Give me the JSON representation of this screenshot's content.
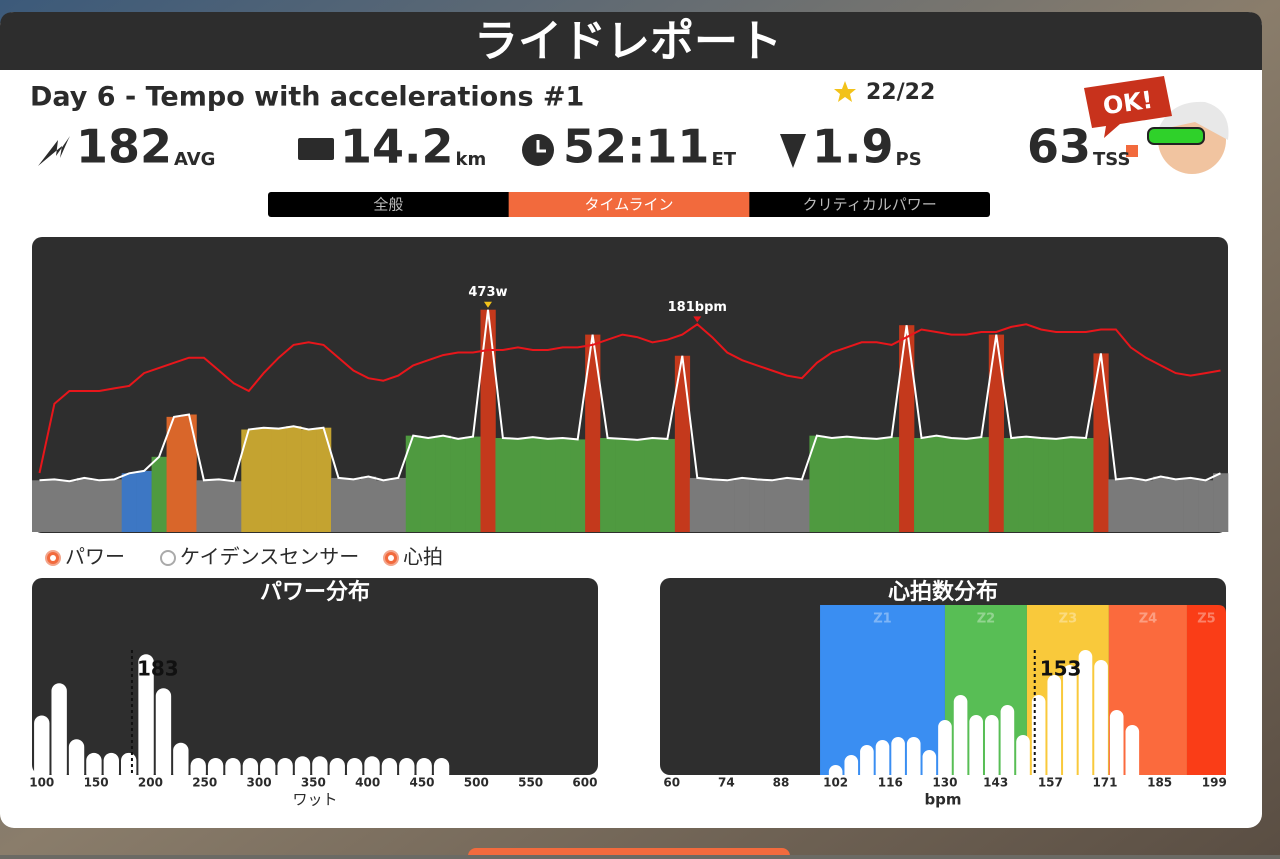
{
  "header": {
    "title": "ライドレポート"
  },
  "workout": {
    "name": "Day 6 - Tempo with accelerations #1",
    "score": "22/22"
  },
  "stats": [
    {
      "value": "182",
      "unit": "AVG"
    },
    {
      "value": "14.2",
      "unit": "km"
    },
    {
      "value": "52:11",
      "unit": "ET"
    },
    {
      "value": "1.9",
      "unit": "PS"
    },
    {
      "value": "63",
      "unit": "TSS"
    }
  ],
  "badge": "OK!",
  "tabs": {
    "items": [
      "全般",
      "タイムライン",
      "クリティカルパワー"
    ],
    "active": 1
  },
  "legend": [
    {
      "name": "パワー",
      "on": true
    },
    {
      "name": "ケイデンスセンサー",
      "on": false
    },
    {
      "name": "心拍",
      "on": true
    }
  ],
  "chart_data": [
    {
      "type": "timeline",
      "ylim": [
        0,
        600
      ],
      "y2lim": [
        100,
        210
      ],
      "annotations": [
        "473w",
        "181bpm"
      ],
      "series": [
        {
          "color": "#ffffff",
          "values": [
            110,
            112,
            108,
            115,
            110,
            112,
            125,
            130,
            160,
            245,
            250,
            110,
            112,
            108,
            218,
            222,
            220,
            225,
            218,
            222,
            115,
            112,
            118,
            110,
            115,
            205,
            200,
            205,
            198,
            203,
            473,
            200,
            198,
            202,
            198,
            200,
            197,
            420,
            200,
            198,
            196,
            200,
            198,
            375,
            115,
            112,
            110,
            115,
            112,
            110,
            115,
            112,
            205,
            200,
            203,
            200,
            198,
            202,
            440,
            200,
            205,
            200,
            198,
            202,
            420,
            200,
            203,
            200,
            198,
            202,
            200,
            380,
            112,
            115,
            110,
            118,
            112,
            115,
            110,
            125
          ],
          "zones": [
            0,
            0,
            0,
            0,
            0,
            0,
            1,
            1,
            2,
            4,
            4,
            0,
            0,
            0,
            3,
            3,
            3,
            3,
            3,
            3,
            0,
            0,
            0,
            0,
            0,
            2,
            2,
            2,
            2,
            2,
            5,
            2,
            2,
            2,
            2,
            2,
            2,
            5,
            2,
            2,
            2,
            2,
            2,
            5,
            0,
            0,
            0,
            0,
            0,
            0,
            0,
            0,
            2,
            2,
            2,
            2,
            2,
            2,
            5,
            2,
            2,
            2,
            2,
            2,
            5,
            2,
            2,
            2,
            2,
            2,
            2,
            5,
            0,
            0,
            0,
            0,
            0,
            0,
            0,
            0
          ],
          "zone_colors": [
            "#7a7a7a",
            "#3d77c4",
            "#4f9a40",
            "#c4a330",
            "#d9662a",
            "#c4391c"
          ]
        },
        {
          "axis": "y2",
          "color": "#e8161b",
          "values": [
            123,
            150,
            155,
            155,
            155,
            156,
            157,
            162,
            164,
            166,
            168,
            168,
            163,
            158,
            155,
            162,
            168,
            173,
            174,
            173,
            168,
            163,
            160,
            159,
            161,
            165,
            167,
            169,
            170,
            170,
            171,
            171,
            172,
            171,
            171,
            172,
            172,
            173,
            175,
            177,
            176,
            174,
            175,
            177,
            181,
            176,
            170,
            167,
            165,
            163,
            161,
            160,
            166,
            170,
            172,
            174,
            174,
            173,
            176,
            179,
            178,
            177,
            177,
            178,
            178,
            180,
            181,
            179,
            178,
            178,
            178,
            179,
            179,
            172,
            168,
            165,
            162,
            161,
            162,
            163
          ]
        }
      ]
    },
    {
      "type": "histogram",
      "title": "パワー分布",
      "xlabel": "ワット",
      "xlim": [
        91,
        612
      ],
      "ylim": [
        0,
        100
      ],
      "xticks": [
        100,
        150,
        200,
        250,
        300,
        350,
        400,
        450,
        500,
        550,
        600
      ],
      "marker": 183,
      "color": "#ffffff",
      "bins": [
        92,
        108,
        124,
        140,
        156,
        172,
        188,
        204,
        220,
        236,
        252,
        268,
        284,
        300,
        316,
        332,
        348,
        364,
        380,
        396,
        412,
        428,
        444,
        460,
        476
      ],
      "values": [
        35,
        54,
        21,
        13,
        13,
        13,
        71,
        51,
        19,
        10,
        10,
        10,
        10,
        10,
        10,
        11,
        11,
        10,
        10,
        11,
        10,
        10,
        10,
        10
      ]
    },
    {
      "type": "histogram",
      "title": "心拍数分布",
      "xlabel": "bpm",
      "xlim": [
        57,
        202
      ],
      "ylim": [
        0,
        170
      ],
      "xticks": [
        60,
        74,
        88,
        102,
        116,
        130,
        143,
        157,
        171,
        185,
        199
      ],
      "marker": 153,
      "color": "#ffffff",
      "zones": [
        {
          "label": "Z1",
          "from": 98,
          "to": 130,
          "color": "#3a8ef2"
        },
        {
          "label": "Z2",
          "from": 130,
          "to": 151,
          "color": "#58be55"
        },
        {
          "label": "Z3",
          "from": 151,
          "to": 172,
          "color": "#f9c93b"
        },
        {
          "label": "Z4",
          "from": 172,
          "to": 192,
          "color": "#fb6a3d"
        },
        {
          "label": "Z5",
          "from": 192,
          "to": 202,
          "color": "#fa3d17"
        }
      ],
      "bins": [
        100,
        104,
        108,
        112,
        116,
        120,
        124,
        128,
        132,
        136,
        140,
        144,
        148,
        152,
        156,
        160,
        164,
        168,
        172,
        176,
        180
      ],
      "values": [
        10,
        20,
        30,
        35,
        38,
        38,
        25,
        55,
        80,
        60,
        60,
        70,
        40,
        80,
        100,
        110,
        125,
        115,
        65,
        50
      ]
    }
  ]
}
